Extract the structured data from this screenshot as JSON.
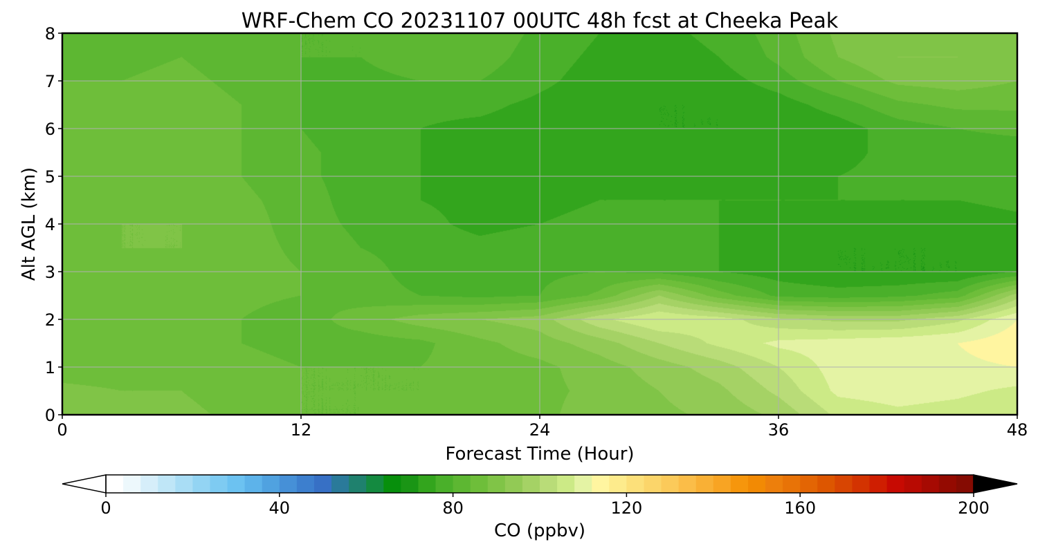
{
  "chart_data": {
    "type": "heatmap",
    "title": "WRF-Chem CO  20231107 00UTC 48h fcst at Cheeka Peak",
    "xlabel": "Forecast Time (Hour)",
    "ylabel": "Alt AGL (km)",
    "xlim": [
      0,
      48
    ],
    "ylim": [
      0,
      8
    ],
    "x_ticks": [
      "0",
      "12",
      "24",
      "36",
      "48"
    ],
    "y_ticks": [
      "0",
      "1",
      "2",
      "3",
      "4",
      "5",
      "6",
      "7",
      "8"
    ],
    "grid": true,
    "x": [
      0,
      3,
      6,
      9,
      12,
      15,
      18,
      21,
      24,
      27,
      30,
      33,
      36,
      39,
      42,
      45,
      48
    ],
    "y": [
      0,
      0.5,
      1,
      1.5,
      2,
      2.5,
      3,
      3.5,
      4,
      4.5,
      5,
      5.5,
      6,
      6.5,
      7,
      7.5,
      8
    ],
    "z_unit": "ppbv",
    "z": [
      [
        92,
        89,
        89,
        87,
        84,
        84,
        85,
        86,
        87,
        90,
        91,
        93,
        97,
        105,
        107,
        106,
        104
      ],
      [
        89,
        88,
        88,
        86,
        84,
        84,
        84,
        86,
        87,
        89,
        92,
        95,
        101,
        109,
        110,
        109,
        107
      ],
      [
        86,
        86,
        86,
        85,
        84,
        84,
        84,
        86,
        87,
        90,
        94,
        98,
        104,
        110,
        111,
        111,
        112
      ],
      [
        85,
        85,
        85,
        84,
        83,
        82,
        83,
        87,
        90,
        94,
        100,
        105,
        109,
        110,
        111,
        112,
        115
      ],
      [
        85,
        85,
        85,
        84,
        82,
        86,
        90,
        92,
        94,
        103,
        108,
        106,
        101,
        99,
        99,
        103,
        112
      ],
      [
        85,
        85,
        86,
        85,
        84,
        82,
        80,
        79,
        80,
        85,
        96,
        86,
        79,
        78,
        79,
        82,
        98
      ],
      [
        86,
        86,
        87,
        86,
        84,
        82,
        78,
        78,
        79,
        80,
        79,
        76,
        74,
        72,
        72,
        72,
        76
      ],
      [
        87,
        88,
        88,
        86,
        83,
        80,
        78,
        77,
        78,
        79,
        78,
        76,
        74,
        72,
        72,
        72,
        74
      ],
      [
        87,
        88,
        88,
        86,
        82,
        79,
        77,
        75,
        76,
        77,
        77,
        76,
        75,
        74,
        74,
        74,
        75
      ],
      [
        86,
        87,
        87,
        85,
        82,
        78,
        76,
        75,
        75,
        76,
        76,
        76,
        76,
        76,
        76,
        76,
        77
      ],
      [
        85,
        86,
        86,
        84,
        81,
        78,
        76,
        75,
        74,
        75,
        75,
        75,
        75,
        76,
        77,
        77,
        77
      ],
      [
        84,
        85,
        86,
        84,
        81,
        78,
        76,
        75,
        74,
        74,
        73,
        73,
        73,
        75,
        77,
        78,
        78
      ],
      [
        84,
        85,
        86,
        84,
        80,
        77,
        76,
        75,
        74,
        73,
        72,
        72,
        72,
        74,
        78,
        80,
        81
      ],
      [
        84,
        85,
        86,
        84,
        80,
        78,
        77,
        77,
        75,
        73,
        72,
        72,
        74,
        78,
        83,
        85,
        85
      ],
      [
        84,
        84,
        85,
        83,
        80,
        79,
        80,
        80,
        77,
        74,
        73,
        74,
        78,
        84,
        89,
        90,
        88
      ],
      [
        84,
        83,
        84,
        82,
        80,
        80,
        82,
        82,
        78,
        75,
        74,
        76,
        81,
        88,
        92,
        92,
        89
      ],
      [
        83,
        82,
        83,
        81,
        80,
        80,
        83,
        83,
        79,
        76,
        75,
        77,
        82,
        89,
        91,
        90,
        88
      ]
    ],
    "colorbar": {
      "label": "CO  (ppbv)",
      "range": [
        0,
        200
      ],
      "step": 4,
      "ticks": [
        "0",
        "40",
        "80",
        "120",
        "160",
        "200"
      ],
      "extend": "both",
      "colors": [
        "#ffffff",
        "#edf8fc",
        "#d6eefa",
        "#bfe6f7",
        "#a9ddf5",
        "#93d4f3",
        "#7ecbf2",
        "#6cc2f1",
        "#5db3ea",
        "#50a2e0",
        "#4690d7",
        "#3d7fce",
        "#3770c5",
        "#2a7a9a",
        "#1f816e",
        "#148a40",
        "#078f0c",
        "#1a9515",
        "#33a51d",
        "#4ab02a",
        "#5db732",
        "#6ebe3a",
        "#80c447",
        "#92ca55",
        "#a5d265",
        "#b9dc78",
        "#ccea86",
        "#e4f3a4",
        "#fff5a0",
        "#fdeb8c",
        "#fce07a",
        "#fbd56a",
        "#fbca5a",
        "#fbbd48",
        "#f9b035",
        "#f8a423",
        "#f6960c",
        "#f28a04",
        "#ed7f0c",
        "#e87307",
        "#e36504",
        "#dd5600",
        "#d84502",
        "#d33301",
        "#cf1e01",
        "#c70a02",
        "#b80a02",
        "#a60a02",
        "#940a01",
        "#850b02",
        "#770a02",
        "#6a0b03",
        "#5c0a04",
        "#4f0a05",
        "#420a06",
        "#350a07",
        "#280a08",
        "#1c0608",
        "#100408",
        "#050202",
        "#000000"
      ]
    }
  }
}
